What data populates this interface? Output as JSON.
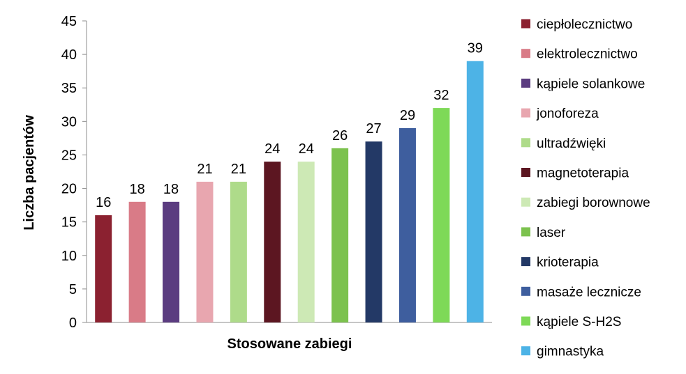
{
  "chart_data": {
    "type": "bar",
    "xlabel": "Stosowane zabiegi",
    "ylabel": "Liczba pacjentów",
    "ylim": [
      0,
      45
    ],
    "yticks": [
      0,
      5,
      10,
      15,
      20,
      25,
      30,
      35,
      40,
      45
    ],
    "grid": false,
    "legend_position": "right",
    "data_labels": true,
    "categories": [
      "ciepłolecznictwo",
      "elektrolecznictwo",
      "kąpiele solankowe",
      "jonoforeza",
      "ultradźwięki",
      "magnetoterapia",
      "zabiegi borownowe",
      "laser",
      "krioterapia",
      "masaże lecznicze",
      "kąpiele S-H2S",
      "gimnastyka"
    ],
    "values": [
      16,
      18,
      18,
      21,
      21,
      24,
      24,
      26,
      27,
      29,
      32,
      39
    ],
    "colors": [
      "#8B2130",
      "#D97B87",
      "#5B3C80",
      "#E8A6AF",
      "#AEDB8A",
      "#5C1621",
      "#CDE9B5",
      "#7CC24E",
      "#233966",
      "#3E5E9E",
      "#7ED957",
      "#4DB3E6"
    ]
  }
}
